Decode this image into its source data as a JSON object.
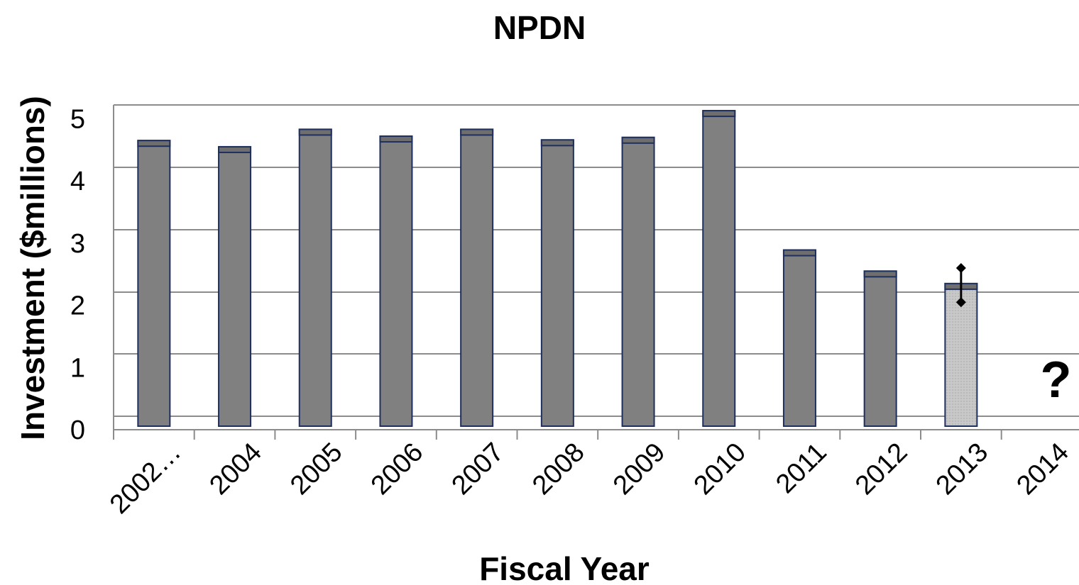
{
  "chart_data": {
    "type": "bar",
    "title": "NPDN",
    "xlabel": "Fiscal Year",
    "ylabel": "Investment ($millions)",
    "categories": [
      "2002…",
      "2004",
      "2005",
      "2006",
      "2007",
      "2008",
      "2009",
      "2010",
      "2011",
      "2012",
      "2013",
      "2014"
    ],
    "values": [
      4.65,
      4.55,
      4.83,
      4.72,
      4.83,
      4.66,
      4.7,
      5.13,
      2.89,
      2.55,
      2.35,
      null
    ],
    "ylim": [
      0,
      5.2
    ],
    "yticks": [
      0,
      1,
      2,
      3,
      4,
      5
    ],
    "grid": true,
    "error_bar": {
      "category": "2013",
      "low": 2.05,
      "high": 2.6
    },
    "annotations": [
      {
        "category": "2014",
        "text": "?"
      }
    ],
    "colors": {
      "bar_fill": "#808080",
      "bar_cap": "#6e6e6e",
      "bar_stroke": "#1f2f5e",
      "highlight_fill": "#c8c8c8",
      "grid": "#8c8c8c",
      "axis": "#8c8c8c"
    }
  }
}
